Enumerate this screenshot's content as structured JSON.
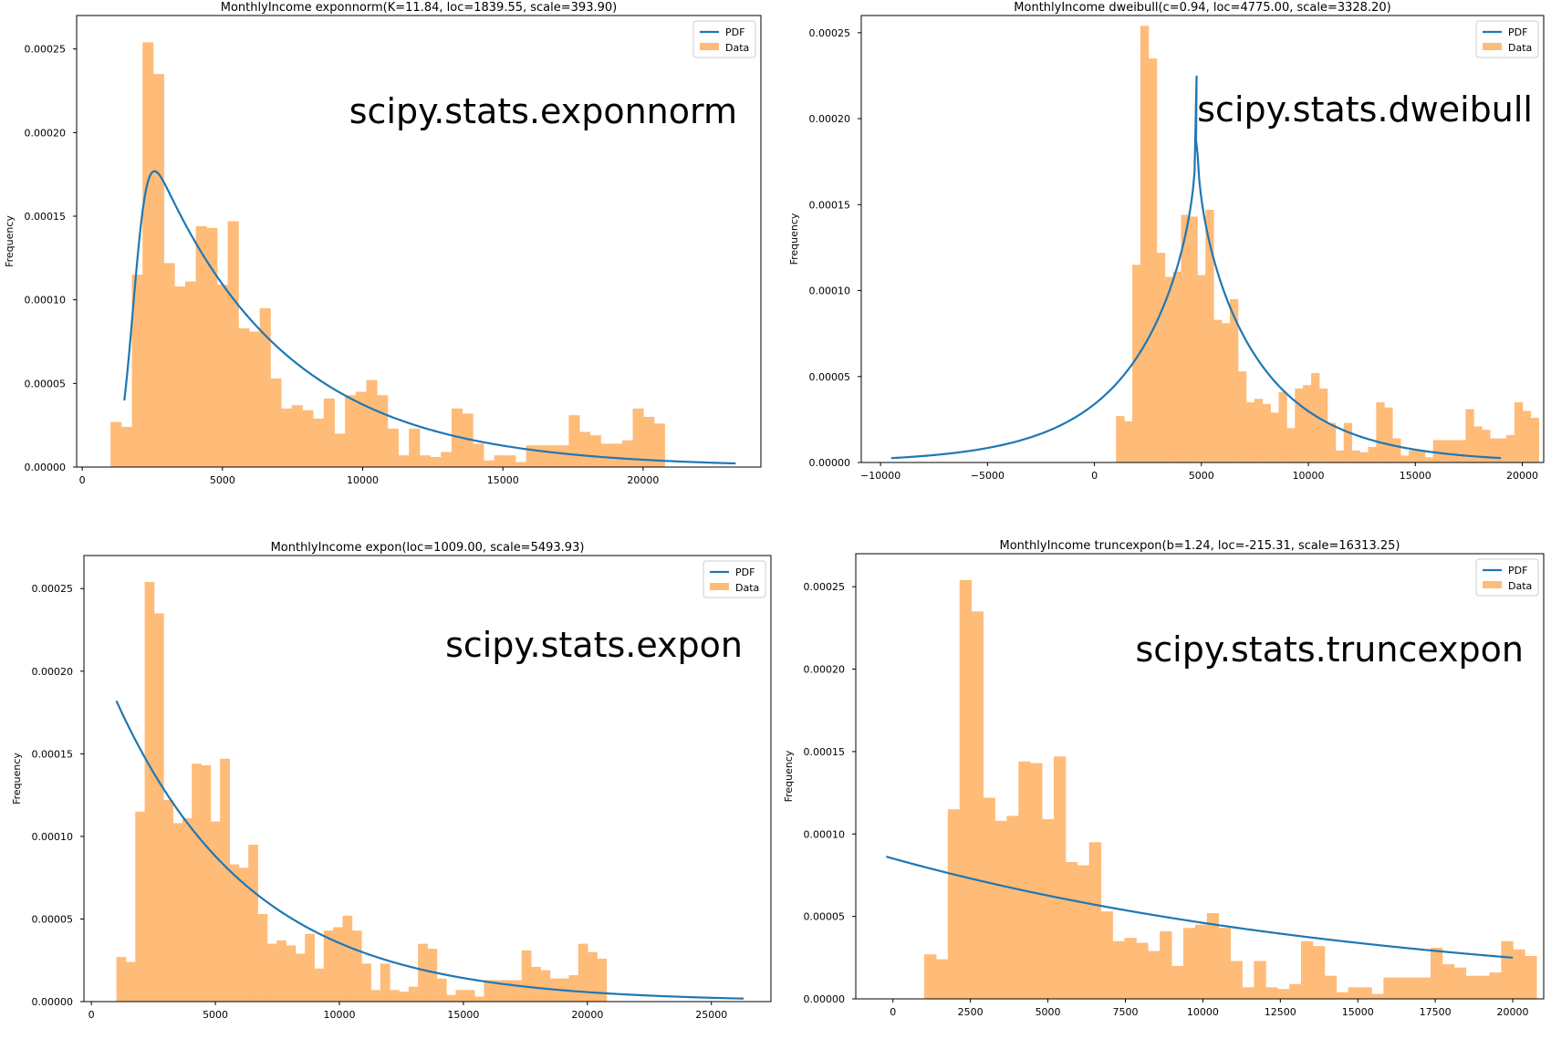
{
  "colors": {
    "line": "#1f77b4",
    "hist": "#ffbb78",
    "axis": "#000000"
  },
  "chart_data": [
    {
      "type": "histogram+line",
      "title": "MonthlyIncome exponnorm(K=11.84, loc=1839.55, scale=393.90)",
      "annotation": "scipy.stats.exponnorm",
      "ylabel": "Frequency",
      "legend": {
        "placement": "top-right",
        "entries": [
          "PDF",
          "Data"
        ]
      },
      "xlim": [
        -200,
        24200
      ],
      "ylim": [
        0,
        0.00027
      ],
      "xticks": [
        0,
        5000,
        10000,
        15000,
        20000
      ],
      "xtick_labels": [
        "0",
        "5000",
        "10000",
        "15000",
        "20000"
      ],
      "yticks": [
        0,
        5e-05,
        0.0001,
        0.00015,
        0.0002,
        0.00025
      ],
      "ytick_labels": [
        "0.00000",
        "0.00005",
        "0.00010",
        "0.00015",
        "0.00020",
        "0.00025"
      ],
      "hist": {
        "start": 1009,
        "width": 380,
        "values": [
          2.7e-05,
          2.4e-05,
          0.000115,
          0.000254,
          0.000235,
          0.000122,
          0.000108,
          0.000111,
          0.000144,
          0.000143,
          0.000109,
          0.000147,
          8.3e-05,
          8.1e-05,
          9.5e-05,
          5.3e-05,
          3.5e-05,
          3.7e-05,
          3.4e-05,
          2.9e-05,
          4.1e-05,
          2e-05,
          4.3e-05,
          4.5e-05,
          5.2e-05,
          4.3e-05,
          2.3e-05,
          7e-06,
          2.3e-05,
          7e-06,
          6e-06,
          9e-06,
          3.5e-05,
          3.2e-05,
          1.4e-05,
          4e-06,
          7e-06,
          7e-06,
          3e-06,
          1.3e-05,
          1.3e-05,
          1.3e-05,
          1.3e-05,
          3.1e-05,
          2.1e-05,
          1.9e-05,
          1.4e-05,
          1.4e-05,
          1.6e-05,
          3.5e-05,
          3e-05,
          2.6e-05,
          0.0,
          0.0,
          0.0
        ]
      },
      "pdf": {
        "kind": "exponnorm",
        "K": 11.84,
        "loc": 1839.55,
        "scale": 393.9,
        "x_range": [
          1500,
          23300
        ]
      }
    },
    {
      "type": "histogram+line",
      "title": "MonthlyIncome dweibull(c=0.94, loc=4775.00, scale=3328.20)",
      "annotation": "scipy.stats.dweibull",
      "ylabel": "Frequency",
      "legend": {
        "placement": "top-right",
        "entries": [
          "PDF",
          "Data"
        ]
      },
      "xlim": [
        -10900,
        21000
      ],
      "ylim": [
        0,
        0.00026
      ],
      "xticks": [
        -10000,
        -5000,
        0,
        5000,
        10000,
        15000,
        20000
      ],
      "xtick_labels": [
        "−10000",
        "−5000",
        "0",
        "5000",
        "10000",
        "15000",
        "20000"
      ],
      "yticks": [
        0,
        5e-05,
        0.0001,
        0.00015,
        0.0002,
        0.00025
      ],
      "ytick_labels": [
        "0.00000",
        "0.00005",
        "0.00010",
        "0.00015",
        "0.00020",
        "0.00025"
      ],
      "hist": {
        "start": 1009,
        "width": 380,
        "values": [
          2.7e-05,
          2.4e-05,
          0.000115,
          0.000254,
          0.000235,
          0.000122,
          0.000108,
          0.000111,
          0.000144,
          0.000143,
          0.000109,
          0.000147,
          8.3e-05,
          8.1e-05,
          9.5e-05,
          5.3e-05,
          3.5e-05,
          3.7e-05,
          3.4e-05,
          2.9e-05,
          4.1e-05,
          2e-05,
          4.3e-05,
          4.5e-05,
          5.2e-05,
          4.3e-05,
          2.3e-05,
          7e-06,
          2.3e-05,
          7e-06,
          6e-06,
          9e-06,
          3.5e-05,
          3.2e-05,
          1.4e-05,
          4e-06,
          7e-06,
          7e-06,
          3e-06,
          1.3e-05,
          1.3e-05,
          1.3e-05,
          1.3e-05,
          3.1e-05,
          2.1e-05,
          1.9e-05,
          1.4e-05,
          1.4e-05,
          1.6e-05,
          3.5e-05,
          3e-05,
          2.6e-05
        ]
      },
      "pdf": {
        "kind": "dweibull",
        "c": 0.94,
        "loc": 4775.0,
        "scale": 3328.2,
        "x_range": [
          -9500,
          19000
        ]
      }
    },
    {
      "type": "histogram+line",
      "title": "MonthlyIncome expon(loc=1009.00, scale=5493.93)",
      "annotation": "scipy.stats.expon",
      "ylabel": "Frequency",
      "legend": {
        "placement": "top-right",
        "entries": [
          "PDF",
          "Data"
        ]
      },
      "xlim": [
        -300,
        27400
      ],
      "ylim": [
        0,
        0.00027
      ],
      "xticks": [
        0,
        5000,
        10000,
        15000,
        20000,
        25000
      ],
      "xtick_labels": [
        "0",
        "5000",
        "10000",
        "15000",
        "20000",
        "25000"
      ],
      "yticks": [
        0,
        5e-05,
        0.0001,
        0.00015,
        0.0002,
        0.00025
      ],
      "ytick_labels": [
        "0.00000",
        "0.00005",
        "0.00010",
        "0.00015",
        "0.00020",
        "0.00025"
      ],
      "hist": {
        "start": 1009,
        "width": 380,
        "values": [
          2.7e-05,
          2.4e-05,
          0.000115,
          0.000254,
          0.000235,
          0.000122,
          0.000108,
          0.000111,
          0.000144,
          0.000143,
          0.000109,
          0.000147,
          8.3e-05,
          8.1e-05,
          9.5e-05,
          5.3e-05,
          3.5e-05,
          3.7e-05,
          3.4e-05,
          2.9e-05,
          4.1e-05,
          2e-05,
          4.3e-05,
          4.5e-05,
          5.2e-05,
          4.3e-05,
          2.3e-05,
          7e-06,
          2.3e-05,
          7e-06,
          6e-06,
          9e-06,
          3.5e-05,
          3.2e-05,
          1.4e-05,
          4e-06,
          7e-06,
          7e-06,
          3e-06,
          1.3e-05,
          1.3e-05,
          1.3e-05,
          1.3e-05,
          3.1e-05,
          2.1e-05,
          1.9e-05,
          1.4e-05,
          1.4e-05,
          1.6e-05,
          3.5e-05,
          3e-05,
          2.6e-05
        ]
      },
      "pdf": {
        "kind": "expon",
        "loc": 1009.0,
        "scale": 5493.93,
        "x_range": [
          1009,
          26300
        ]
      }
    },
    {
      "type": "histogram+line",
      "title": "MonthlyIncome truncexpon(b=1.24, loc=-215.31, scale=16313.25)",
      "annotation": "scipy.stats.truncexpon",
      "ylabel": "Frequency",
      "legend": {
        "placement": "top-right",
        "entries": [
          "PDF",
          "Data"
        ]
      },
      "xlim": [
        -1200,
        21000
      ],
      "ylim": [
        0,
        0.00027
      ],
      "xticks": [
        0,
        2500,
        5000,
        7500,
        10000,
        12500,
        15000,
        17500,
        20000
      ],
      "xtick_labels": [
        "0",
        "2500",
        "5000",
        "7500",
        "10000",
        "12500",
        "15000",
        "17500",
        "20000"
      ],
      "yticks": [
        0,
        5e-05,
        0.0001,
        0.00015,
        0.0002,
        0.00025
      ],
      "ytick_labels": [
        "0.00000",
        "0.00005",
        "0.00010",
        "0.00015",
        "0.00020",
        "0.00025"
      ],
      "hist": {
        "start": 1009,
        "width": 380,
        "values": [
          2.7e-05,
          2.4e-05,
          0.000115,
          0.000254,
          0.000235,
          0.000122,
          0.000108,
          0.000111,
          0.000144,
          0.000143,
          0.000109,
          0.000147,
          8.3e-05,
          8.1e-05,
          9.5e-05,
          5.3e-05,
          3.5e-05,
          3.7e-05,
          3.4e-05,
          2.9e-05,
          4.1e-05,
          2e-05,
          4.3e-05,
          4.5e-05,
          5.2e-05,
          4.3e-05,
          2.3e-05,
          7e-06,
          2.3e-05,
          7e-06,
          6e-06,
          9e-06,
          3.5e-05,
          3.2e-05,
          1.4e-05,
          4e-06,
          7e-06,
          7e-06,
          3e-06,
          1.3e-05,
          1.3e-05,
          1.3e-05,
          1.3e-05,
          3.1e-05,
          2.1e-05,
          1.9e-05,
          1.4e-05,
          1.4e-05,
          1.6e-05,
          3.5e-05,
          3e-05,
          2.6e-05
        ]
      },
      "pdf": {
        "kind": "truncexpon",
        "b": 1.24,
        "loc": -215.31,
        "scale": 16313.25,
        "x_range": [
          -215.31,
          20000
        ]
      }
    }
  ]
}
